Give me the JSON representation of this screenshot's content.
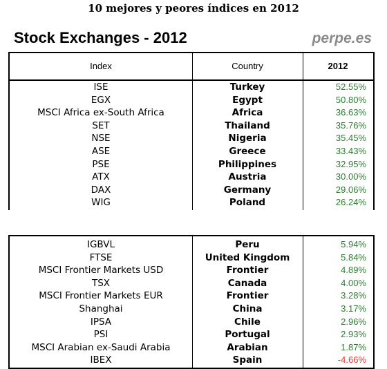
{
  "document_title": "10 mejores y peores índices en 2012",
  "table_title": "Stock Exchanges - 2012",
  "site": "perpe.es",
  "header": {
    "index": "Index",
    "country": "Country",
    "year": "2012"
  },
  "colors": {
    "positive": "#2e7d32",
    "negative": "#e53935",
    "site": "#8a8a8a"
  },
  "top_rows": [
    {
      "index": "ISE",
      "country": "Turkey",
      "value": "52.55%"
    },
    {
      "index": "EGX",
      "country": "Egypt",
      "value": "50.80%"
    },
    {
      "index": "MSCI Africa ex-South Africa",
      "country": "Africa",
      "value": "36.63%"
    },
    {
      "index": "SET",
      "country": "Thailand",
      "value": "35.76%"
    },
    {
      "index": "NSE",
      "country": "Nigeria",
      "value": "35.45%"
    },
    {
      "index": "ASE",
      "country": "Greece",
      "value": "33.43%"
    },
    {
      "index": "PSE",
      "country": "Philippines",
      "value": "32.95%"
    },
    {
      "index": "ATX",
      "country": "Austria",
      "value": "30.00%"
    },
    {
      "index": "DAX",
      "country": "Germany",
      "value": "29.06%"
    },
    {
      "index": "WIG",
      "country": "Poland",
      "value": "26.24%"
    }
  ],
  "bottom_rows": [
    {
      "index": "IGBVL",
      "country": "Peru",
      "value": "5.94%"
    },
    {
      "index": "FTSE",
      "country": "United Kingdom",
      "value": "5.84%"
    },
    {
      "index": "MSCI Frontier Markets USD",
      "country": "Frontier",
      "value": "4.89%"
    },
    {
      "index": "TSX",
      "country": "Canada",
      "value": "4.00%"
    },
    {
      "index": "MSCI Frontier Markets EUR",
      "country": "Frontier",
      "value": "3.28%"
    },
    {
      "index": "Shanghai",
      "country": "China",
      "value": "3.17%"
    },
    {
      "index": "IPSA",
      "country": "Chile",
      "value": "2.96%"
    },
    {
      "index": "PSI",
      "country": "Portugal",
      "value": "2.93%"
    },
    {
      "index": "MSCI Arabian ex-Saudi Arabia",
      "country": "Arabian",
      "value": "1.87%"
    },
    {
      "index": "IBEX",
      "country": "Spain",
      "value": "-4.66%",
      "negative": true
    }
  ]
}
